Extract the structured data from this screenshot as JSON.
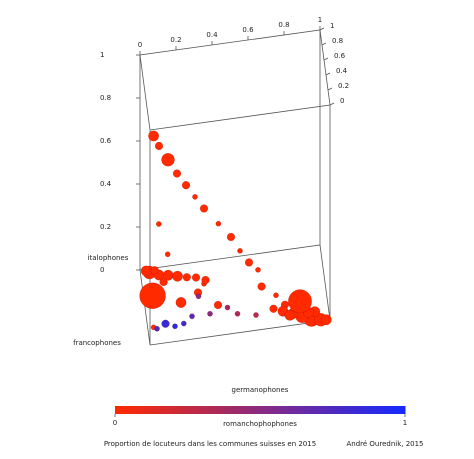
{
  "chart_data": {
    "type": "scatter3d",
    "x_label": "germanophones",
    "y_label": "francophones",
    "z_label": "italophones",
    "color_label": "romanchophophones",
    "footer": "Proportion de locuteurs dans les communes suisses en 2015",
    "credit": "André Ourednik, 2015",
    "xlim": [
      0,
      1
    ],
    "xticks": [
      0,
      0.2,
      0.4,
      0.6,
      0.8,
      1
    ],
    "ylim": [
      0,
      1
    ],
    "yticks": [
      0,
      0.2,
      0.4,
      0.6,
      0.8,
      1
    ],
    "zlim": [
      0,
      1
    ],
    "zticks": [
      0,
      0.2,
      0.4,
      0.6,
      0.8,
      1
    ],
    "clim": [
      0,
      1
    ],
    "cticks": [
      0,
      1
    ],
    "low_color": "#ff2a00",
    "high_color": "#142aff",
    "germanophones": [
      0.02,
      0.05,
      0.1,
      0.15,
      0.2,
      0.25,
      0.3,
      0.38,
      0.45,
      0.5,
      0.55,
      0.6,
      0.62,
      0.7,
      0.75,
      0.05,
      0.1,
      0.3,
      0.02,
      0.05,
      0.1,
      0.15,
      0.2,
      0.25,
      0.3,
      0.03,
      0.08,
      0.35,
      0.12,
      0.05,
      0.2,
      0.4,
      0.3,
      0.9,
      0.85,
      0.95,
      0.8,
      0.75,
      0.92,
      0.7,
      0.88,
      0.98,
      0.78,
      0.85,
      0.1,
      0.15,
      0.2,
      0.25,
      0.05,
      0.35,
      0.45,
      0.5,
      0.6,
      0.3
    ],
    "francophones": [
      0,
      0,
      0,
      0,
      0,
      0,
      0,
      0,
      0,
      0,
      0,
      0,
      0,
      0,
      0,
      0.02,
      0.03,
      0,
      0,
      0.95,
      0.9,
      0.88,
      0.85,
      0.82,
      0.8,
      0.92,
      0.97,
      0.75,
      0.8,
      0.64,
      0.5,
      0.4,
      0.6,
      0.05,
      0.1,
      0.02,
      0.15,
      0.2,
      0.08,
      0.25,
      0,
      0.01,
      0.05,
      0.3,
      0.25,
      0.2,
      0.22,
      0.3,
      0.2,
      0.3,
      0.35,
      0.25,
      0.2,
      0.55
    ],
    "italophones": [
      0.97,
      0.92,
      0.85,
      0.78,
      0.72,
      0.66,
      0.6,
      0.52,
      0.45,
      0.38,
      0.32,
      0.28,
      0.2,
      0.15,
      0.1,
      0.55,
      0.4,
      0.25,
      0.08,
      0,
      0,
      0,
      0,
      0,
      0,
      0.02,
      0,
      0,
      0,
      0,
      0,
      0,
      0,
      0,
      0,
      0,
      0,
      0,
      0.02,
      0,
      0.05,
      0,
      0.03,
      0,
      0,
      0,
      0,
      0,
      0,
      0,
      0,
      0,
      0,
      0
    ],
    "romanchophones": [
      0,
      0,
      0,
      0,
      0,
      0,
      0,
      0,
      0,
      0,
      0,
      0,
      0,
      0,
      0,
      0,
      0,
      0,
      0,
      0,
      0,
      0,
      0,
      0,
      0,
      0,
      0,
      0,
      0,
      0,
      0,
      0,
      0,
      0,
      0,
      0,
      0,
      0,
      0,
      0,
      0,
      0,
      0,
      0,
      0.85,
      0.9,
      0.8,
      0.7,
      0.75,
      0.5,
      0.4,
      0.35,
      0.3,
      0.5
    ],
    "size": [
      4,
      3,
      5,
      3,
      3,
      2,
      3,
      2,
      3,
      2,
      3,
      2,
      3,
      2,
      3,
      2,
      2,
      2,
      2,
      5,
      4,
      4,
      4,
      3,
      3,
      4,
      3,
      3,
      3,
      10,
      4,
      3,
      3,
      6,
      5,
      5,
      4,
      4,
      4,
      3,
      4,
      4,
      4,
      9,
      3,
      2,
      2,
      2,
      2,
      2,
      2,
      2,
      2,
      2
    ]
  }
}
